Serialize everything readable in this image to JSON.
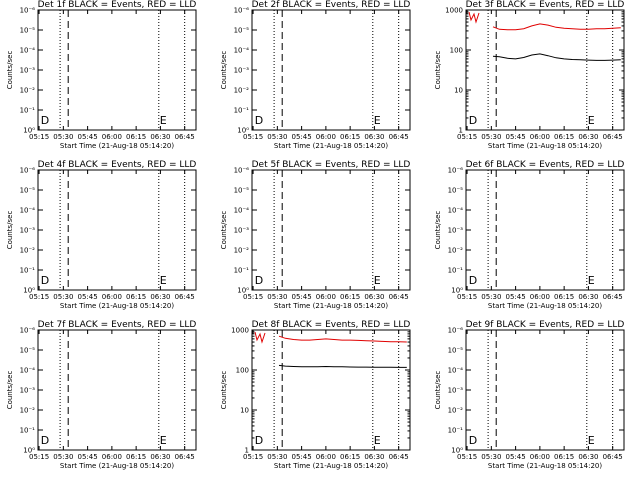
{
  "colors": {
    "events": "#000000",
    "lld": "#e00000",
    "background": "#ffffff"
  },
  "xlabel": "Start Time (21-Aug-18 05:14:20)",
  "ylabel": "Counts/sec",
  "x_ticks": [
    "05:15",
    "05:30",
    "05:45",
    "06:00",
    "06:15",
    "06:30",
    "06:45"
  ],
  "y_ticks_empty": [
    "10⁰",
    "10⁻¹",
    "10⁻²",
    "10⁻³",
    "10⁻⁴",
    "10⁻⁵",
    "10⁻⁶"
  ],
  "y_ticks_log": [
    "1",
    "10",
    "100",
    "1000"
  ],
  "markers": {
    "start": "D",
    "end": "E"
  },
  "chart_data": [
    {
      "type": "line",
      "title": "Det 1f BLACK = Events, RED = LLD",
      "has_data": false,
      "series": []
    },
    {
      "type": "line",
      "title": "Det 2f BLACK = Events, RED = LLD",
      "has_data": false,
      "series": []
    },
    {
      "type": "line",
      "title": "Det 3f BLACK = Events, RED = LLD",
      "has_data": true,
      "ylim": [
        1,
        1000
      ],
      "yscale": "log",
      "x": [
        "05:31",
        "05:35",
        "05:40",
        "05:45",
        "05:50",
        "05:55",
        "06:00",
        "06:05",
        "06:10",
        "06:15",
        "06:20",
        "06:25",
        "06:30",
        "06:35",
        "06:40",
        "06:45",
        "06:50"
      ],
      "series": [
        {
          "name": "LLD",
          "color": "#e00000",
          "values": [
            380,
            330,
            320,
            320,
            340,
            400,
            450,
            420,
            370,
            350,
            340,
            330,
            330,
            340,
            340,
            350,
            360
          ]
        },
        {
          "name": "Events",
          "color": "#000000",
          "values": [
            70,
            68,
            62,
            60,
            65,
            75,
            80,
            72,
            64,
            60,
            58,
            57,
            56,
            55,
            55,
            56,
            57
          ]
        }
      ]
    },
    {
      "type": "line",
      "title": "Det 4f BLACK = Events, RED = LLD",
      "has_data": false,
      "series": []
    },
    {
      "type": "line",
      "title": "Det 5f BLACK = Events, RED = LLD",
      "has_data": false,
      "series": []
    },
    {
      "type": "line",
      "title": "Det 6f BLACK = Events, RED = LLD",
      "has_data": false,
      "series": []
    },
    {
      "type": "line",
      "title": "Det 7f BLACK = Events, RED = LLD",
      "has_data": false,
      "series": []
    },
    {
      "type": "line",
      "title": "Det 8f BLACK = Events, RED = LLD",
      "has_data": true,
      "ylim": [
        1,
        1000
      ],
      "yscale": "log",
      "x": [
        "05:31",
        "05:35",
        "05:40",
        "05:45",
        "05:50",
        "05:55",
        "06:00",
        "06:05",
        "06:10",
        "06:15",
        "06:20",
        "06:25",
        "06:30",
        "06:35",
        "06:40",
        "06:45",
        "06:50"
      ],
      "series": [
        {
          "name": "LLD",
          "color": "#e00000",
          "values": [
            700,
            620,
            580,
            560,
            560,
            580,
            600,
            580,
            560,
            560,
            550,
            540,
            530,
            520,
            510,
            510,
            500
          ]
        },
        {
          "name": "Events",
          "color": "#000000",
          "values": [
            130,
            125,
            122,
            120,
            120,
            121,
            122,
            121,
            120,
            119,
            118,
            118,
            117,
            117,
            117,
            116,
            116
          ]
        }
      ]
    },
    {
      "type": "line",
      "title": "Det 9f BLACK = Events, RED = LLD",
      "has_data": false,
      "series": []
    }
  ]
}
